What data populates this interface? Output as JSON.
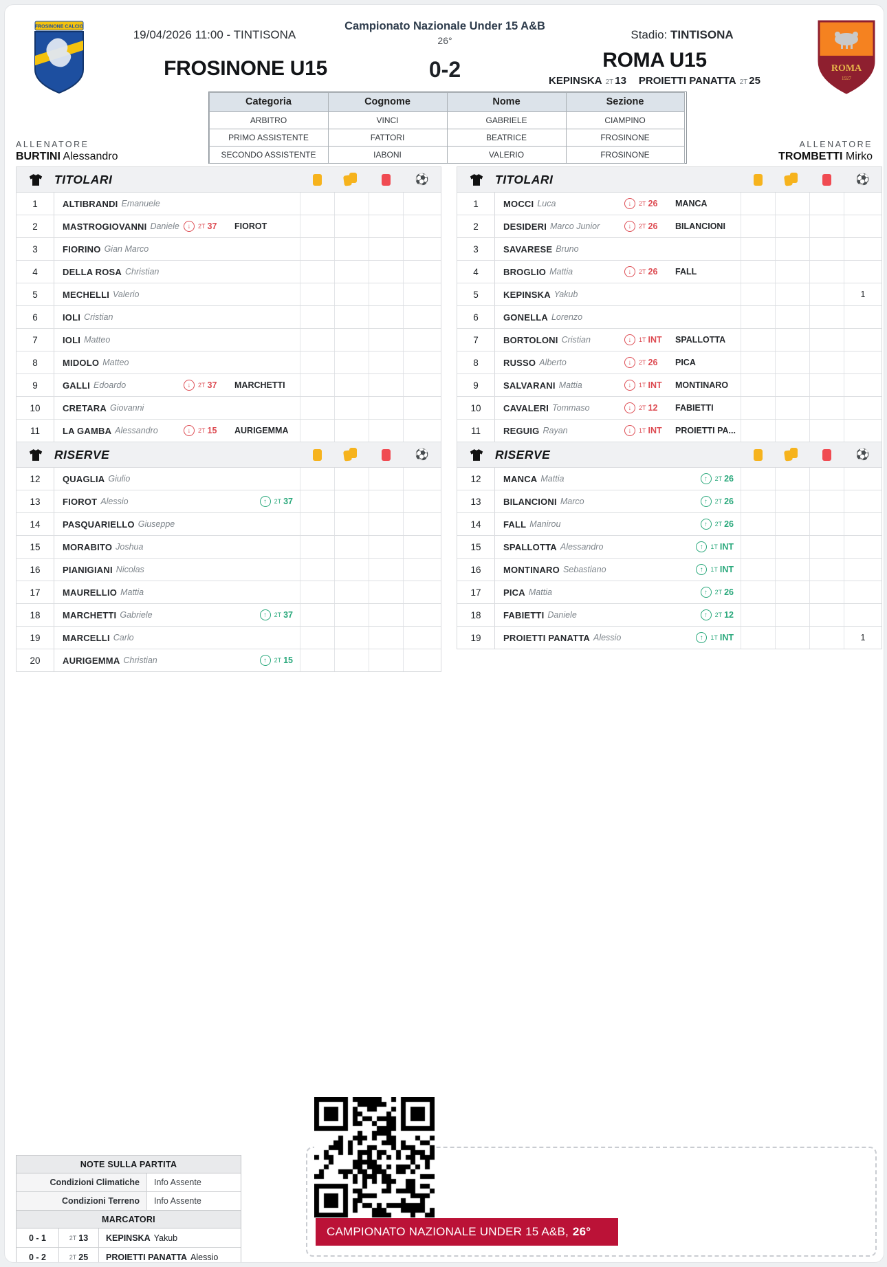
{
  "header": {
    "datetime_line": "19/04/2026 11:00 - TINTISONA",
    "competition": "Campionato Nazionale Under 15 A&B",
    "temperature": "26°",
    "stadium_label": "Stadio:",
    "stadium": "TINTISONA",
    "home_team": "FROSINONE U15",
    "score": "0-2",
    "away_team": "ROMA U15",
    "away_scorers": [
      {
        "name": "KEPINSKA",
        "half": "2T",
        "minute": "13"
      },
      {
        "name": "PROIETTI PANATTA",
        "half": "2T",
        "minute": "25"
      }
    ],
    "home_badge": {
      "banner_text": "FROSINONE CALCIO"
    },
    "away_badge": {
      "name": "ROMA",
      "year": "1927"
    }
  },
  "officials": {
    "headers": [
      "Categoria",
      "Cognome",
      "Nome",
      "Sezione"
    ],
    "rows": [
      [
        "ARBITRO",
        "VINCI",
        "GABRIELE",
        "CIAMPINO"
      ],
      [
        "PRIMO ASSISTENTE",
        "FATTORI",
        "BEATRICE",
        "FROSINONE"
      ],
      [
        "SECONDO ASSISTENTE",
        "IABONI",
        "VALERIO",
        "FROSINONE"
      ]
    ]
  },
  "home": {
    "coach_label": "ALLENATORE",
    "coach_surname": "BURTINI",
    "coach_firstname": "Alessandro",
    "starters_title": "TITOLARI",
    "reserves_title": "RISERVE",
    "starters": [
      {
        "num": "1",
        "surname": "ALTIBRANDI",
        "firstname": "Emanuele"
      },
      {
        "num": "2",
        "surname": "MASTROGIOVANNI",
        "firstname": "Daniele",
        "out": {
          "half": "2T",
          "minute": "37",
          "replacement": "FIOROT"
        }
      },
      {
        "num": "3",
        "surname": "FIORINO",
        "firstname": "Gian Marco"
      },
      {
        "num": "4",
        "surname": "DELLA ROSA",
        "firstname": "Christian"
      },
      {
        "num": "5",
        "surname": "MECHELLI",
        "firstname": "Valerio"
      },
      {
        "num": "6",
        "surname": "IOLI",
        "firstname": "Cristian"
      },
      {
        "num": "7",
        "surname": "IOLI",
        "firstname": "Matteo"
      },
      {
        "num": "8",
        "surname": "MIDOLO",
        "firstname": "Matteo"
      },
      {
        "num": "9",
        "surname": "GALLI",
        "firstname": "Edoardo",
        "out": {
          "half": "2T",
          "minute": "37",
          "replacement": "MARCHETTI"
        }
      },
      {
        "num": "10",
        "surname": "CRETARA",
        "firstname": "Giovanni"
      },
      {
        "num": "11",
        "surname": "LA GAMBA",
        "firstname": "Alessandro",
        "out": {
          "half": "2T",
          "minute": "15",
          "replacement": "AURIGEMMA"
        }
      }
    ],
    "reserves": [
      {
        "num": "12",
        "surname": "QUAGLIA",
        "firstname": "Giulio"
      },
      {
        "num": "13",
        "surname": "FIOROT",
        "firstname": "Alessio",
        "in": {
          "half": "2T",
          "minute": "37"
        }
      },
      {
        "num": "14",
        "surname": "PASQUARIELLO",
        "firstname": "Giuseppe"
      },
      {
        "num": "15",
        "surname": "MORABITO",
        "firstname": "Joshua"
      },
      {
        "num": "16",
        "surname": "PIANIGIANI",
        "firstname": "Nicolas"
      },
      {
        "num": "17",
        "surname": "MAURELLIO",
        "firstname": "Mattia"
      },
      {
        "num": "18",
        "surname": "MARCHETTI",
        "firstname": "Gabriele",
        "in": {
          "half": "2T",
          "minute": "37"
        }
      },
      {
        "num": "19",
        "surname": "MARCELLI",
        "firstname": "Carlo"
      },
      {
        "num": "20",
        "surname": "AURIGEMMA",
        "firstname": "Christian",
        "in": {
          "half": "2T",
          "minute": "15"
        }
      }
    ]
  },
  "away": {
    "coach_label": "ALLENATORE",
    "coach_surname": "TROMBETTI",
    "coach_firstname": "Mirko",
    "starters_title": "TITOLARI",
    "reserves_title": "RISERVE",
    "starters": [
      {
        "num": "1",
        "surname": "MOCCI",
        "firstname": "Luca",
        "out": {
          "half": "2T",
          "minute": "26",
          "replacement": "MANCA"
        }
      },
      {
        "num": "2",
        "surname": "DESIDERI",
        "firstname": "Marco Junior",
        "out": {
          "half": "2T",
          "minute": "26",
          "replacement": "BILANCIONI"
        }
      },
      {
        "num": "3",
        "surname": "SAVARESE",
        "firstname": "Bruno"
      },
      {
        "num": "4",
        "surname": "BROGLIO",
        "firstname": "Mattia",
        "out": {
          "half": "2T",
          "minute": "26",
          "replacement": "FALL"
        }
      },
      {
        "num": "5",
        "surname": "KEPINSKA",
        "firstname": "Yakub",
        "goals": "1"
      },
      {
        "num": "6",
        "surname": "GONELLA",
        "firstname": "Lorenzo"
      },
      {
        "num": "7",
        "surname": "BORTOLONI",
        "firstname": "Cristian",
        "out": {
          "half": "1T",
          "minute": "INT",
          "replacement": "SPALLOTTA"
        }
      },
      {
        "num": "8",
        "surname": "RUSSO",
        "firstname": "Alberto",
        "out": {
          "half": "2T",
          "minute": "26",
          "replacement": "PICA"
        }
      },
      {
        "num": "9",
        "surname": "SALVARANI",
        "firstname": "Mattia",
        "out": {
          "half": "1T",
          "minute": "INT",
          "replacement": "MONTINARO"
        }
      },
      {
        "num": "10",
        "surname": "CAVALERI",
        "firstname": "Tommaso",
        "out": {
          "half": "2T",
          "minute": "12",
          "replacement": "FABIETTI"
        }
      },
      {
        "num": "11",
        "surname": "REGUIG",
        "firstname": "Rayan",
        "out": {
          "half": "1T",
          "minute": "INT",
          "replacement": "PROIETTI PA..."
        }
      }
    ],
    "reserves": [
      {
        "num": "12",
        "surname": "MANCA",
        "firstname": "Mattia",
        "in": {
          "half": "2T",
          "minute": "26"
        }
      },
      {
        "num": "13",
        "surname": "BILANCIONI",
        "firstname": "Marco",
        "in": {
          "half": "2T",
          "minute": "26"
        }
      },
      {
        "num": "14",
        "surname": "FALL",
        "firstname": "Manirou",
        "in": {
          "half": "2T",
          "minute": "26"
        }
      },
      {
        "num": "15",
        "surname": "SPALLOTTA",
        "firstname": "Alessandro",
        "in": {
          "half": "1T",
          "minute": "INT"
        }
      },
      {
        "num": "16",
        "surname": "MONTINARO",
        "firstname": "Sebastiano",
        "in": {
          "half": "1T",
          "minute": "INT"
        }
      },
      {
        "num": "17",
        "surname": "PICA",
        "firstname": "Mattia",
        "in": {
          "half": "2T",
          "minute": "26"
        }
      },
      {
        "num": "18",
        "surname": "FABIETTI",
        "firstname": "Daniele",
        "in": {
          "half": "2T",
          "minute": "12"
        }
      },
      {
        "num": "19",
        "surname": "PROIETTI PANATTA",
        "firstname": "Alessio",
        "in": {
          "half": "1T",
          "minute": "INT"
        },
        "goals": "1"
      }
    ]
  },
  "notes": {
    "title": "NOTE SULLA PARTITA",
    "rows": [
      {
        "label": "Condizioni Climatiche",
        "value": "Info Assente"
      },
      {
        "label": "Condizioni Terreno",
        "value": "Info Assente"
      }
    ]
  },
  "scorers_table": {
    "title": "MARCATORI",
    "rows": [
      {
        "score": "0 - 1",
        "half": "2T",
        "minute": "13",
        "surname": "KEPINSKA",
        "firstname": "Yakub"
      },
      {
        "score": "0 - 2",
        "half": "2T",
        "minute": "25",
        "surname": "PROIETTI PANATTA",
        "firstname": "Alessio"
      }
    ]
  },
  "banner": {
    "text": "CAMPIONATO NAZIONALE UNDER 15 A&B,",
    "temp": "26°"
  },
  "colors": {
    "sub_out_red": "#dd4b52",
    "sub_in_green": "#29a87b",
    "yellow_card": "#f6b31d",
    "red_card": "#f04b52",
    "banner_red": "#bb1237",
    "officials_header_bg": "#dce3ea"
  }
}
